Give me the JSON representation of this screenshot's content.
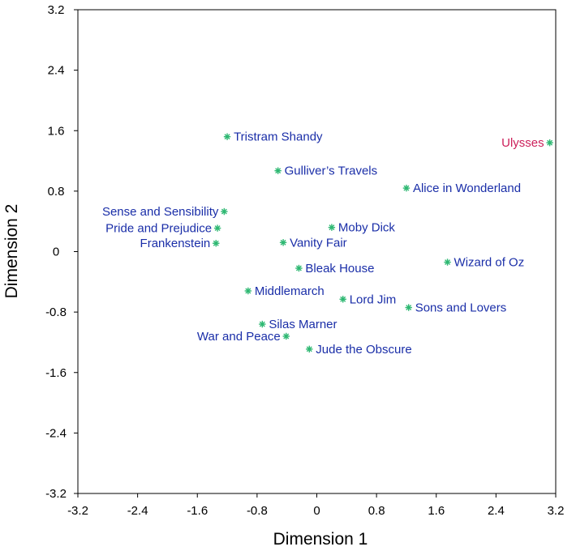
{
  "chart_data": {
    "type": "scatter",
    "xlabel": "Dimension 1",
    "ylabel": "Dimension 2",
    "xlim": [
      -3.2,
      3.2
    ],
    "ylim": [
      -3.2,
      3.2
    ],
    "xticks": [
      "-3.2",
      "-2.4",
      "-1.6",
      "-0.8",
      "0",
      "0.8",
      "1.6",
      "2.4",
      "3.2"
    ],
    "yticks": [
      "3.2",
      "2.4",
      "1.6",
      "0.8",
      "0",
      "-0.8",
      "-1.6",
      "-2.4",
      "-3.2"
    ],
    "xtick_values": [
      -3.2,
      -2.4,
      -1.6,
      -0.8,
      0,
      0.8,
      1.6,
      2.4,
      3.2
    ],
    "ytick_values": [
      3.2,
      2.4,
      1.6,
      0.8,
      0,
      -0.8,
      -1.6,
      -2.4,
      -3.2
    ],
    "grid": false,
    "marker_color": "#2eb872",
    "label_color": "#1a2ea8",
    "highlight_color": "#cc1f5a",
    "points": [
      {
        "label": "Tristram Shandy",
        "x": -1.2,
        "y": 1.52,
        "side": "right",
        "highlight": false
      },
      {
        "label": "Ulysses",
        "x": 3.12,
        "y": 1.44,
        "side": "left",
        "highlight": true
      },
      {
        "label": "Gulliver’s Travels",
        "x": -0.52,
        "y": 1.07,
        "side": "right",
        "highlight": false
      },
      {
        "label": "Alice in Wonderland",
        "x": 1.2,
        "y": 0.84,
        "side": "right",
        "highlight": false
      },
      {
        "label": "Sense and Sensibility",
        "x": -1.24,
        "y": 0.53,
        "side": "left",
        "highlight": false
      },
      {
        "label": "Pride and Prejudice",
        "x": -1.33,
        "y": 0.31,
        "side": "left",
        "highlight": false
      },
      {
        "label": "Frankenstein",
        "x": -1.35,
        "y": 0.11,
        "side": "left",
        "highlight": false
      },
      {
        "label": "Moby Dick",
        "x": 0.2,
        "y": 0.32,
        "side": "right",
        "highlight": false
      },
      {
        "label": "Vanity Fair",
        "x": -0.45,
        "y": 0.12,
        "side": "right",
        "highlight": false
      },
      {
        "label": "Wizard of Oz",
        "x": 1.75,
        "y": -0.14,
        "side": "right",
        "highlight": false
      },
      {
        "label": "Bleak House",
        "x": -0.24,
        "y": -0.22,
        "side": "right",
        "highlight": false
      },
      {
        "label": "Middlemarch",
        "x": -0.92,
        "y": -0.52,
        "side": "right",
        "highlight": false
      },
      {
        "label": "Lord Jim",
        "x": 0.35,
        "y": -0.63,
        "side": "right",
        "highlight": false
      },
      {
        "label": "Sons and Lovers",
        "x": 1.23,
        "y": -0.74,
        "side": "right",
        "highlight": false
      },
      {
        "label": "Silas Marner",
        "x": -0.73,
        "y": -0.96,
        "side": "right",
        "highlight": false
      },
      {
        "label": "War and Peace",
        "x": -0.41,
        "y": -1.12,
        "side": "left",
        "highlight": false
      },
      {
        "label": "Jude the Obscure",
        "x": -0.1,
        "y": -1.29,
        "side": "right",
        "highlight": false
      }
    ]
  }
}
